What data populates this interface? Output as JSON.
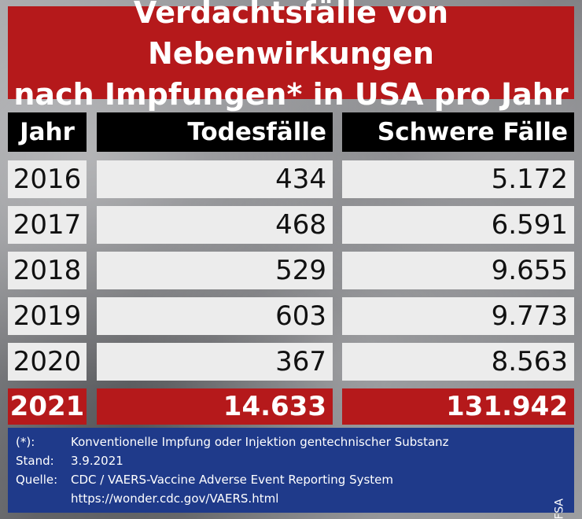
{
  "title": {
    "line1": "Verdachtsfälle von Nebenwirkungen",
    "line2": "nach Impfungen* in USA pro Jahr"
  },
  "table": {
    "headers": [
      "Jahr",
      "Todesfälle",
      "Schwere Fälle"
    ],
    "rows": [
      [
        "2016",
        "434",
        "5.172"
      ],
      [
        "2017",
        "468",
        "6.591"
      ],
      [
        "2018",
        "529",
        "9.655"
      ],
      [
        "2019",
        "603",
        "9.773"
      ],
      [
        "2020",
        "367",
        "8.563"
      ]
    ],
    "total": [
      "2021",
      "14.633",
      "131.942"
    ]
  },
  "footer": {
    "note_key": "(*):",
    "note_text": "Konventionelle Impfung oder Injektion gentechnischer Substanz",
    "stand_key": "Stand:",
    "stand_text": "3.9.2021",
    "source_key": "Quelle:",
    "source_text": "CDC / VAERS-Vaccine Adverse Event Reporting System",
    "url": "https://wonder.cdc.gov/VAERS.html",
    "credit": "FSA"
  },
  "colors": {
    "red": "#b5191b",
    "black": "#000000",
    "row_bg": "#ececec",
    "footer_blue": "#1f3a8a"
  }
}
